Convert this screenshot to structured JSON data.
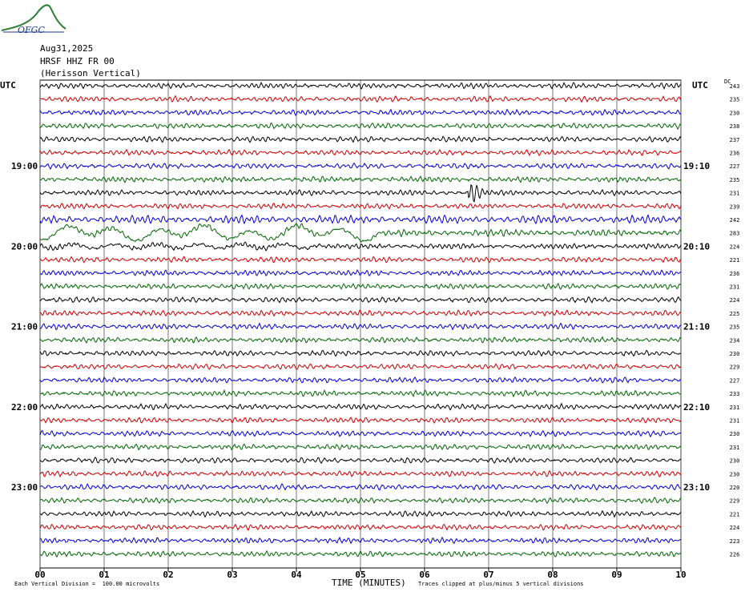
{
  "logo_text": "OFGC",
  "header": {
    "date": "Aug31,2025",
    "station": "HRSF HHZ FR 00",
    "description": "(Herisson Vertical)"
  },
  "utc_left": "UTC",
  "utc_right": "UTC",
  "dc_label": "DC",
  "footer": {
    "scale": "Each Vertical Division =  100.00 microvolts",
    "time_axis": "TIME (MINUTES)",
    "clip_note": "Traces clipped at plus/minus 5 vertical divisions"
  },
  "chart_data": {
    "type": "line",
    "title": "",
    "xlabel": "TIME (MINUTES)",
    "xlim": [
      0,
      10
    ],
    "x_ticks": [
      "00",
      "01",
      "02",
      "03",
      "04",
      "05",
      "06",
      "07",
      "08",
      "09",
      "10"
    ],
    "trace_count": 36,
    "trace_colors": [
      "#000000",
      "#cc0000",
      "#0000cc",
      "#006600"
    ],
    "left_time_labels": [
      {
        "trace": 6,
        "label": "19:00"
      },
      {
        "trace": 12,
        "label": "20:00"
      },
      {
        "trace": 18,
        "label": "21:00"
      },
      {
        "trace": 24,
        "label": "22:00"
      },
      {
        "trace": 30,
        "label": "23:00"
      }
    ],
    "right_time_labels": [
      {
        "trace": 6,
        "label": "19:10"
      },
      {
        "trace": 12,
        "label": "20:10"
      },
      {
        "trace": 18,
        "label": "21:10"
      },
      {
        "trace": 24,
        "label": "22:10"
      },
      {
        "trace": 30,
        "label": "23:10"
      }
    ],
    "dc_values": [
      243,
      235,
      230,
      238,
      237,
      236,
      227,
      235,
      231,
      239,
      242,
      283,
      224,
      221,
      236,
      231,
      224,
      225,
      235,
      234,
      230,
      229,
      227,
      233,
      231,
      231,
      230,
      231,
      230,
      230,
      220,
      229,
      221,
      224,
      223,
      226
    ],
    "events": [
      {
        "trace": 8,
        "minute": 6.75,
        "note": "spike"
      }
    ],
    "grid": true
  }
}
